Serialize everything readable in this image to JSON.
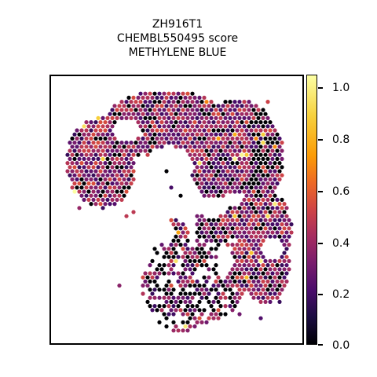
{
  "title_lines": [
    "ZH916T1",
    "CHEMBL550495 score",
    "METHYLENE BLUE"
  ],
  "colors": {
    "colormap": "inferno",
    "low": "#000004",
    "mid": "#a52c60",
    "high": "#fcffa4"
  },
  "chart_data": {
    "type": "scatter",
    "title": "ZH916T1\nCHEMBL550495 score\nMETHYLENE BLUE",
    "xlabel": "",
    "ylabel": "",
    "axes_ticks": "none",
    "grid": false,
    "marker": "hexagonal spot grid (spatial transcriptomics)",
    "colorbar": {
      "cmap": "inferno",
      "range": [
        0.0,
        1.0
      ],
      "ticks": [
        0.0,
        0.2,
        0.4,
        0.6,
        0.8,
        1.0
      ],
      "tick_labels": [
        "0.0",
        "0.2",
        "0.4",
        "0.6",
        "0.8",
        "1.0"
      ],
      "placement": "right"
    },
    "value_summary": {
      "typical_range": [
        0.25,
        0.5
      ],
      "zero_valued_spots": "scattered black spots, concentrated along edges and lower cluster",
      "max_observed": 1.0
    }
  }
}
